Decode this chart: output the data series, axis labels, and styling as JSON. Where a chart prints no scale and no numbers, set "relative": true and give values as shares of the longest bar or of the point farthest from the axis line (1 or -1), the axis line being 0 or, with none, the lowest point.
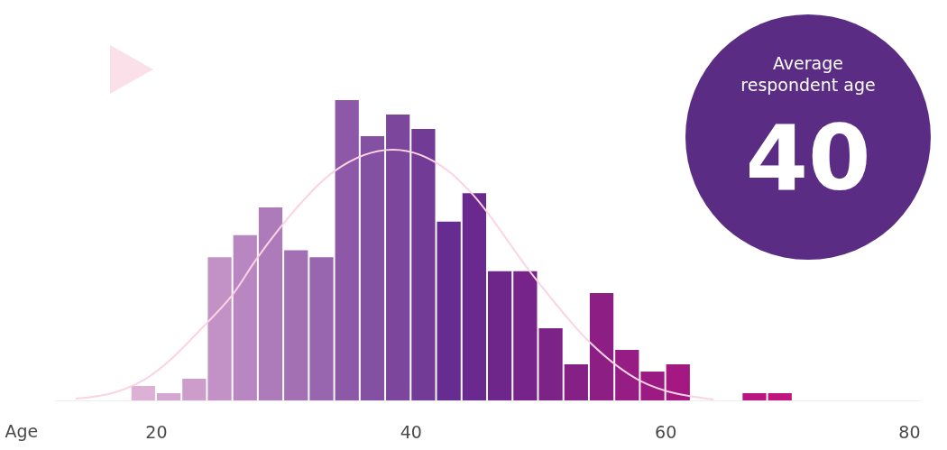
{
  "chart_data": {
    "type": "histogram",
    "xlabel": "Age",
    "relative": true,
    "bins": [
      18,
      20,
      22,
      24,
      26,
      28,
      30,
      32,
      34,
      36,
      38,
      40,
      42,
      44,
      46,
      48,
      50,
      52,
      54,
      56,
      58,
      60,
      62,
      64,
      66,
      68,
      70
    ],
    "values": [
      0.048,
      0.024,
      0.072,
      0.477,
      0.55,
      0.643,
      0.5,
      0.477,
      1,
      0.88,
      0.952,
      0.904,
      0.595,
      0.69,
      0.43,
      0.43,
      0.24,
      0.12,
      0.357,
      0.168,
      0.096,
      0.12,
      0,
      0,
      0.024,
      0.024
    ],
    "colors": [
      "#ddb1d6",
      "#d5a6cf",
      "#cc9dca",
      "#c291c5",
      "#b886c0",
      "#ad7bba",
      "#a370b4",
      "#9865af",
      "#8d58a8",
      "#8450a2",
      "#7b469c",
      "#723b96",
      "#652d90",
      "#69298e",
      "#6f268b",
      "#762489",
      "#7d2287",
      "#852185",
      "#8d1f84",
      "#951d83",
      "#9c1b82",
      "#a41981",
      "#ab1880",
      "#b2177f",
      "#b9167f",
      "#c0147e"
    ],
    "series": [
      {
        "type": "line",
        "color": "#fcd3e4",
        "x": [
          13.7,
          16.8,
          19.2,
          24.0,
          26.0,
          27.9,
          29.9,
          34.0,
          38.6,
          43.0,
          44.7,
          49.7,
          54.1,
          58.0,
          63.8
        ],
        "values": [
          0.006,
          0.027,
          0.072,
          0.258,
          0.351,
          0.471,
          0.583,
          0.763,
          0.835,
          0.763,
          0.694,
          0.411,
          0.192,
          0.066,
          0.003
        ]
      }
    ],
    "xlim": [
      12,
      80
    ],
    "xticks": [
      20,
      40,
      60,
      80
    ],
    "grid": false,
    "annotations": [
      "Average respondent age",
      "40"
    ]
  }
}
